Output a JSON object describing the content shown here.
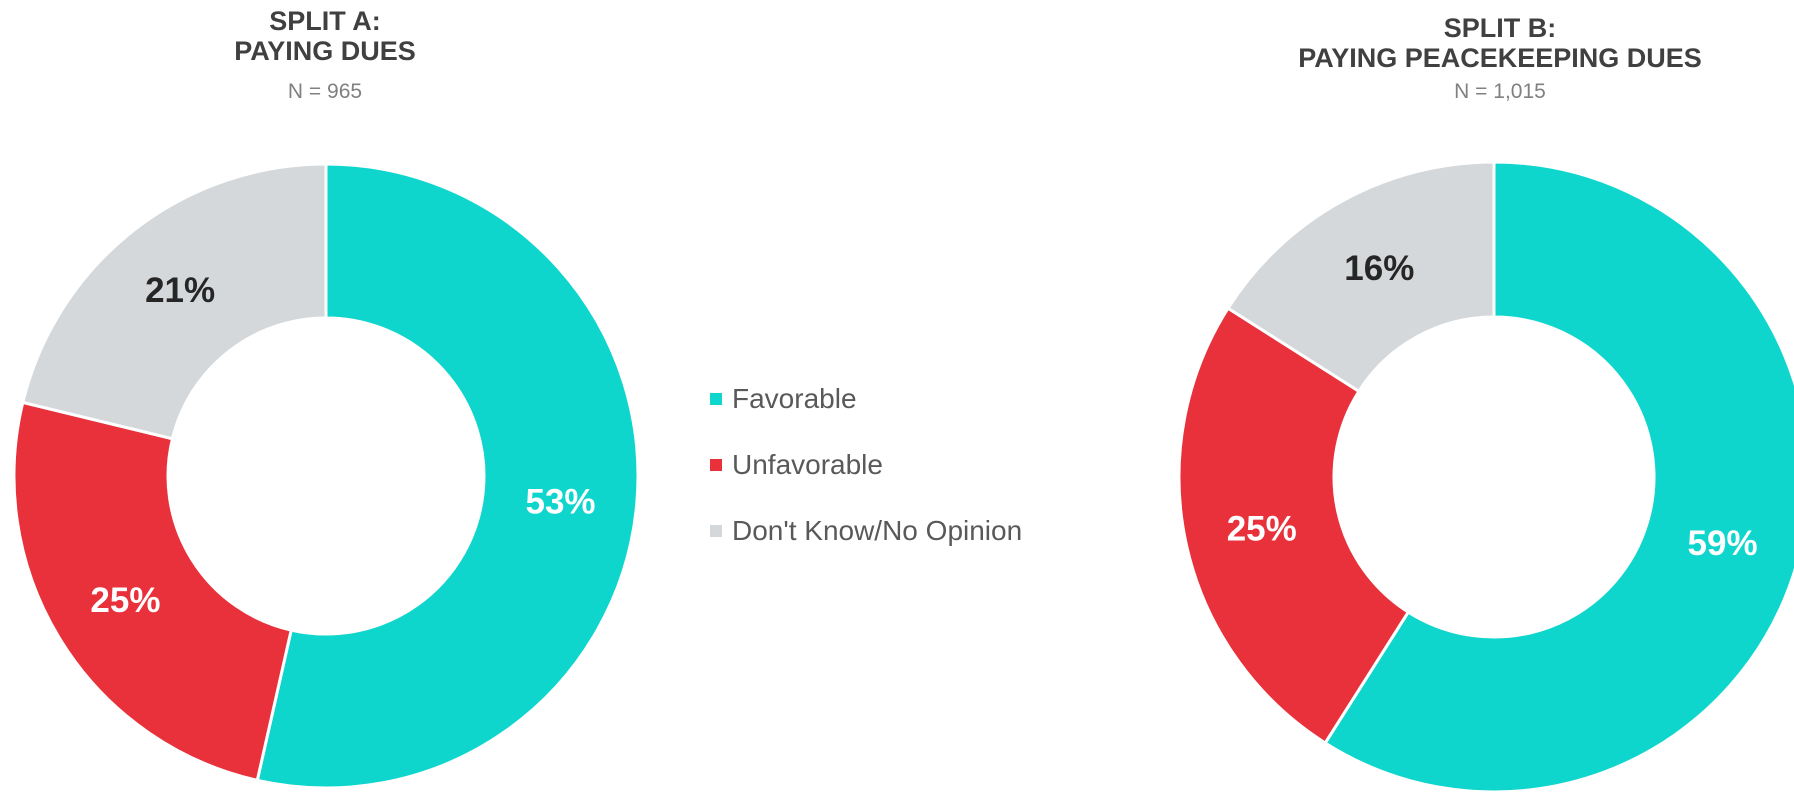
{
  "chart_data": [
    {
      "type": "pie",
      "title_lines": [
        "SPLIT A:",
        "PAYING DUES"
      ],
      "subtitle": "N = 965",
      "categories": [
        "Favorable",
        "Unfavorable",
        "Don't Know/No Opinion"
      ],
      "values": [
        53,
        25,
        21
      ],
      "data_labels": [
        "53%",
        "25%",
        "21%"
      ],
      "colors": [
        "#0fd6cd",
        "#e8313b",
        "#d5d8da"
      ]
    },
    {
      "type": "pie",
      "title_lines": [
        "SPLIT B:",
        "PAYING PEACEKEEPING DUES"
      ],
      "subtitle": "N = 1,015",
      "categories": [
        "Favorable",
        "Unfavorable",
        "Don't Know/No Opinion"
      ],
      "values": [
        59,
        25,
        16
      ],
      "data_labels": [
        "59%",
        "25%",
        "16%"
      ],
      "colors": [
        "#0fd6cd",
        "#e8313b",
        "#d5d8da"
      ]
    }
  ],
  "legend": {
    "placement": "center",
    "items": [
      {
        "label": "Favorable",
        "color": "#0fd6cd"
      },
      {
        "label": "Unfavorable",
        "color": "#e8313b"
      },
      {
        "label": "Don't Know/No Opinion",
        "color": "#d5d8da"
      }
    ]
  },
  "label_colors": [
    "#ffffff",
    "#ffffff",
    "#262626"
  ]
}
